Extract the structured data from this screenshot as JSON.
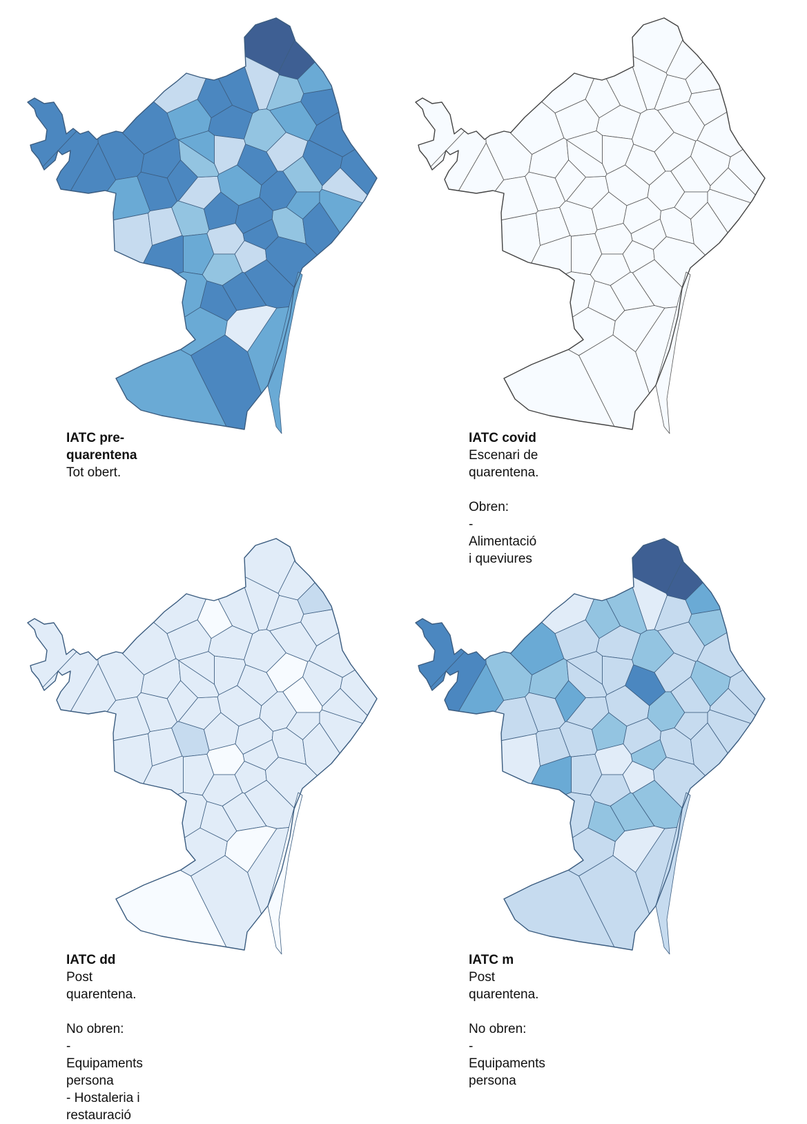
{
  "colors": {
    "level1": "#f7fbff",
    "level2": "#e1ecf8",
    "level3": "#c6dbef",
    "level4": "#93c4e1",
    "level5": "#6aaad5",
    "level6": "#4b87c0",
    "level7": "#3e5f93"
  },
  "panels": [
    {
      "id": "pre",
      "title": "IATC pre-quarentena",
      "lines": [
        "Tot obert."
      ],
      "levels": [
        6,
        6,
        6,
        6,
        6,
        5,
        6,
        6,
        3,
        6,
        5,
        3,
        6,
        5,
        6,
        3,
        3,
        4,
        6,
        5,
        6,
        4,
        3,
        5,
        6,
        4,
        6,
        3,
        6,
        6,
        5,
        6,
        6,
        3,
        6,
        4,
        6,
        5,
        5,
        6,
        4,
        3,
        5,
        6,
        6,
        6,
        6,
        5,
        2,
        5,
        6,
        5,
        7,
        7,
        5,
        4,
        3,
        6,
        3,
        4
      ]
    },
    {
      "id": "covid",
      "title": "IATC covid",
      "lines": [
        "Escenari de quarentena.",
        "",
        "Obren:",
        "- Alimentació i queviures"
      ],
      "levels": [
        1,
        1,
        1,
        1,
        1,
        1,
        1,
        1,
        1,
        1,
        1,
        1,
        1,
        1,
        1,
        1,
        1,
        1,
        1,
        1,
        1,
        1,
        1,
        1,
        1,
        1,
        1,
        1,
        1,
        1,
        1,
        1,
        1,
        1,
        1,
        1,
        1,
        1,
        1,
        1,
        1,
        1,
        1,
        1,
        1,
        1,
        1,
        1,
        1,
        1,
        1,
        1,
        1,
        1,
        1,
        1,
        1,
        1,
        1,
        1
      ]
    },
    {
      "id": "dd",
      "title": "IATC dd",
      "lines": [
        "Post quarentena.",
        "",
        "No obren:",
        "- Equipaments persona",
        "- Hostaleria i restauració"
      ],
      "levels": [
        2,
        2,
        2,
        2,
        2,
        2,
        2,
        2,
        2,
        1,
        2,
        2,
        2,
        2,
        2,
        2,
        2,
        3,
        2,
        2,
        2,
        2,
        1,
        2,
        2,
        1,
        2,
        2,
        2,
        2,
        2,
        2,
        2,
        1,
        2,
        2,
        2,
        2,
        2,
        2,
        2,
        2,
        2,
        2,
        2,
        2,
        2,
        2,
        1,
        2,
        2,
        1,
        2,
        2,
        3,
        2,
        2,
        2,
        2,
        2
      ]
    },
    {
      "id": "m",
      "title": "IATC m",
      "lines": [
        "Post quarentena.",
        "",
        "No obren:",
        "- Equipaments persona"
      ],
      "levels": [
        6,
        6,
        5,
        4,
        5,
        3,
        3,
        5,
        3,
        4,
        3,
        2,
        3,
        3,
        4,
        2,
        3,
        3,
        4,
        3,
        6,
        4,
        3,
        3,
        4,
        3,
        4,
        3,
        3,
        3,
        3,
        4,
        3,
        2,
        4,
        3,
        3,
        3,
        3,
        5,
        3,
        2,
        3,
        4,
        4,
        4,
        3,
        3,
        2,
        3,
        3,
        3,
        7,
        7,
        5,
        3,
        2,
        4,
        3,
        3
      ]
    }
  ]
}
